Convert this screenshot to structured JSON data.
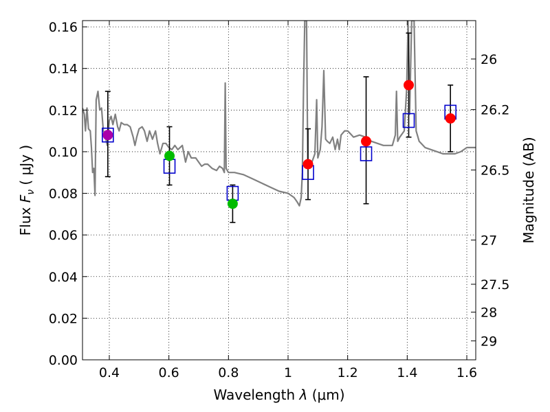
{
  "chart_data": {
    "type": "scatter",
    "title": "",
    "xlabel": "Wavelength",
    "xlabel_symbol": "λ",
    "xlabel_unit": "(μm)",
    "ylabel": "Flux",
    "ylabel_symbol": "F",
    "ylabel_subscript": "ν",
    "ylabel_unit": "( μJy )",
    "ylabel_right": "Magnitude (AB)",
    "xlim": [
      0.31,
      1.63
    ],
    "ylim": [
      0.0,
      0.163
    ],
    "grid": true,
    "x_ticks": [
      {
        "value": 0.4,
        "label": "0.4"
      },
      {
        "value": 0.6,
        "label": "0.6"
      },
      {
        "value": 0.8,
        "label": "0.8"
      },
      {
        "value": 1.0,
        "label": "1"
      },
      {
        "value": 1.2,
        "label": "1.2"
      },
      {
        "value": 1.4,
        "label": "1.4"
      },
      {
        "value": 1.6,
        "label": "1.6"
      }
    ],
    "y_ticks": [
      {
        "value": 0.0,
        "label": "0.00"
      },
      {
        "value": 0.02,
        "label": "0.02"
      },
      {
        "value": 0.04,
        "label": "0.04"
      },
      {
        "value": 0.06,
        "label": "0.06"
      },
      {
        "value": 0.08,
        "label": "0.08"
      },
      {
        "value": 0.1,
        "label": "0.10"
      },
      {
        "value": 0.12,
        "label": "0.12"
      },
      {
        "value": 0.14,
        "label": "0.14"
      },
      {
        "value": 0.16,
        "label": "0.16"
      }
    ],
    "mag_ticks": [
      {
        "mag": 26,
        "label": "26"
      },
      {
        "mag": 26.2,
        "label": "26.2"
      },
      {
        "mag": 26.5,
        "label": "26.5"
      },
      {
        "mag": 27,
        "label": "27"
      },
      {
        "mag": 27.5,
        "label": "27.5"
      },
      {
        "mag": 28,
        "label": "28"
      },
      {
        "mag": 29,
        "label": "29"
      }
    ],
    "colors": {
      "model": "#808080",
      "model_box": "#0000cc",
      "errorbar": "#000000",
      "red_point": "#ff0000",
      "green_point": "#00bb00",
      "purple_point": "#aa00aa"
    },
    "observed": [
      {
        "x": 0.395,
        "y": 0.108,
        "yerr_low": 0.088,
        "yerr_high": 0.129,
        "color": "purple"
      },
      {
        "x": 0.602,
        "y": 0.098,
        "yerr_low": 0.084,
        "yerr_high": 0.112,
        "color": "green"
      },
      {
        "x": 0.814,
        "y": 0.075,
        "yerr_low": 0.066,
        "yerr_high": 0.084,
        "color": "green"
      },
      {
        "x": 1.067,
        "y": 0.094,
        "yerr_low": 0.077,
        "yerr_high": 0.111,
        "color": "red"
      },
      {
        "x": 1.262,
        "y": 0.105,
        "yerr_low": 0.075,
        "yerr_high": 0.136,
        "color": "red"
      },
      {
        "x": 1.405,
        "y": 0.132,
        "yerr_low": 0.107,
        "yerr_high": 0.157,
        "color": "red"
      },
      {
        "x": 1.545,
        "y": 0.116,
        "yerr_low": 0.1,
        "yerr_high": 0.132,
        "color": "red"
      }
    ],
    "model_photometry": [
      {
        "x": 0.395,
        "y": 0.108
      },
      {
        "x": 0.602,
        "y": 0.093
      },
      {
        "x": 0.814,
        "y": 0.08
      },
      {
        "x": 1.067,
        "y": 0.09
      },
      {
        "x": 1.262,
        "y": 0.099
      },
      {
        "x": 1.405,
        "y": 0.115
      },
      {
        "x": 1.545,
        "y": 0.119
      }
    ],
    "model_spectrum": [
      [
        0.31,
        0.121
      ],
      [
        0.316,
        0.118
      ],
      [
        0.32,
        0.11
      ],
      [
        0.325,
        0.121
      ],
      [
        0.33,
        0.111
      ],
      [
        0.336,
        0.11
      ],
      [
        0.34,
        0.102
      ],
      [
        0.344,
        0.09
      ],
      [
        0.348,
        0.092
      ],
      [
        0.352,
        0.079
      ],
      [
        0.356,
        0.125
      ],
      [
        0.362,
        0.129
      ],
      [
        0.368,
        0.12
      ],
      [
        0.374,
        0.121
      ],
      [
        0.38,
        0.11
      ],
      [
        0.386,
        0.108
      ],
      [
        0.393,
        0.103
      ],
      [
        0.4,
        0.115
      ],
      [
        0.406,
        0.117
      ],
      [
        0.412,
        0.113
      ],
      [
        0.42,
        0.118
      ],
      [
        0.428,
        0.112
      ],
      [
        0.433,
        0.11
      ],
      [
        0.44,
        0.114
      ],
      [
        0.45,
        0.113
      ],
      [
        0.46,
        0.113
      ],
      [
        0.47,
        0.112
      ],
      [
        0.48,
        0.107
      ],
      [
        0.486,
        0.103
      ],
      [
        0.492,
        0.107
      ],
      [
        0.5,
        0.111
      ],
      [
        0.51,
        0.112
      ],
      [
        0.518,
        0.11
      ],
      [
        0.527,
        0.105
      ],
      [
        0.535,
        0.11
      ],
      [
        0.545,
        0.106
      ],
      [
        0.555,
        0.11
      ],
      [
        0.562,
        0.104
      ],
      [
        0.57,
        0.099
      ],
      [
        0.58,
        0.104
      ],
      [
        0.59,
        0.104
      ],
      [
        0.6,
        0.102
      ],
      [
        0.61,
        0.101
      ],
      [
        0.62,
        0.103
      ],
      [
        0.63,
        0.101
      ],
      [
        0.645,
        0.103
      ],
      [
        0.656,
        0.095
      ],
      [
        0.665,
        0.1
      ],
      [
        0.675,
        0.097
      ],
      [
        0.69,
        0.097
      ],
      [
        0.7,
        0.095
      ],
      [
        0.71,
        0.093
      ],
      [
        0.72,
        0.094
      ],
      [
        0.73,
        0.094
      ],
      [
        0.745,
        0.092
      ],
      [
        0.76,
        0.091
      ],
      [
        0.77,
        0.093
      ],
      [
        0.78,
        0.092
      ],
      [
        0.786,
        0.09
      ],
      [
        0.789,
        0.133
      ],
      [
        0.792,
        0.092
      ],
      [
        0.8,
        0.09
      ],
      [
        0.82,
        0.09
      ],
      [
        0.85,
        0.089
      ],
      [
        0.88,
        0.087
      ],
      [
        0.91,
        0.085
      ],
      [
        0.94,
        0.083
      ],
      [
        0.97,
        0.081
      ],
      [
        1.0,
        0.08
      ],
      [
        1.02,
        0.078
      ],
      [
        1.03,
        0.076
      ],
      [
        1.038,
        0.074
      ],
      [
        1.044,
        0.078
      ],
      [
        1.048,
        0.09
      ],
      [
        1.052,
        0.13
      ],
      [
        1.056,
        0.163
      ],
      [
        1.062,
        0.163
      ],
      [
        1.066,
        0.096
      ],
      [
        1.07,
        0.094
      ],
      [
        1.08,
        0.095
      ],
      [
        1.09,
        0.099
      ],
      [
        1.096,
        0.125
      ],
      [
        1.1,
        0.097
      ],
      [
        1.108,
        0.101
      ],
      [
        1.114,
        0.112
      ],
      [
        1.12,
        0.139
      ],
      [
        1.126,
        0.106
      ],
      [
        1.132,
        0.105
      ],
      [
        1.14,
        0.104
      ],
      [
        1.15,
        0.107
      ],
      [
        1.158,
        0.101
      ],
      [
        1.166,
        0.106
      ],
      [
        1.172,
        0.101
      ],
      [
        1.178,
        0.108
      ],
      [
        1.19,
        0.11
      ],
      [
        1.2,
        0.11
      ],
      [
        1.22,
        0.107
      ],
      [
        1.24,
        0.108
      ],
      [
        1.26,
        0.107
      ],
      [
        1.28,
        0.105
      ],
      [
        1.3,
        0.104
      ],
      [
        1.32,
        0.103
      ],
      [
        1.34,
        0.103
      ],
      [
        1.35,
        0.103
      ],
      [
        1.36,
        0.108
      ],
      [
        1.364,
        0.129
      ],
      [
        1.368,
        0.105
      ],
      [
        1.375,
        0.107
      ],
      [
        1.39,
        0.11
      ],
      [
        1.398,
        0.13
      ],
      [
        1.403,
        0.163
      ],
      [
        1.408,
        0.118
      ],
      [
        1.415,
        0.163
      ],
      [
        1.423,
        0.163
      ],
      [
        1.43,
        0.11
      ],
      [
        1.44,
        0.105
      ],
      [
        1.46,
        0.102
      ],
      [
        1.48,
        0.101
      ],
      [
        1.5,
        0.1
      ],
      [
        1.52,
        0.099
      ],
      [
        1.54,
        0.099
      ],
      [
        1.56,
        0.099
      ],
      [
        1.58,
        0.1
      ],
      [
        1.6,
        0.102
      ],
      [
        1.63,
        0.102
      ]
    ]
  }
}
